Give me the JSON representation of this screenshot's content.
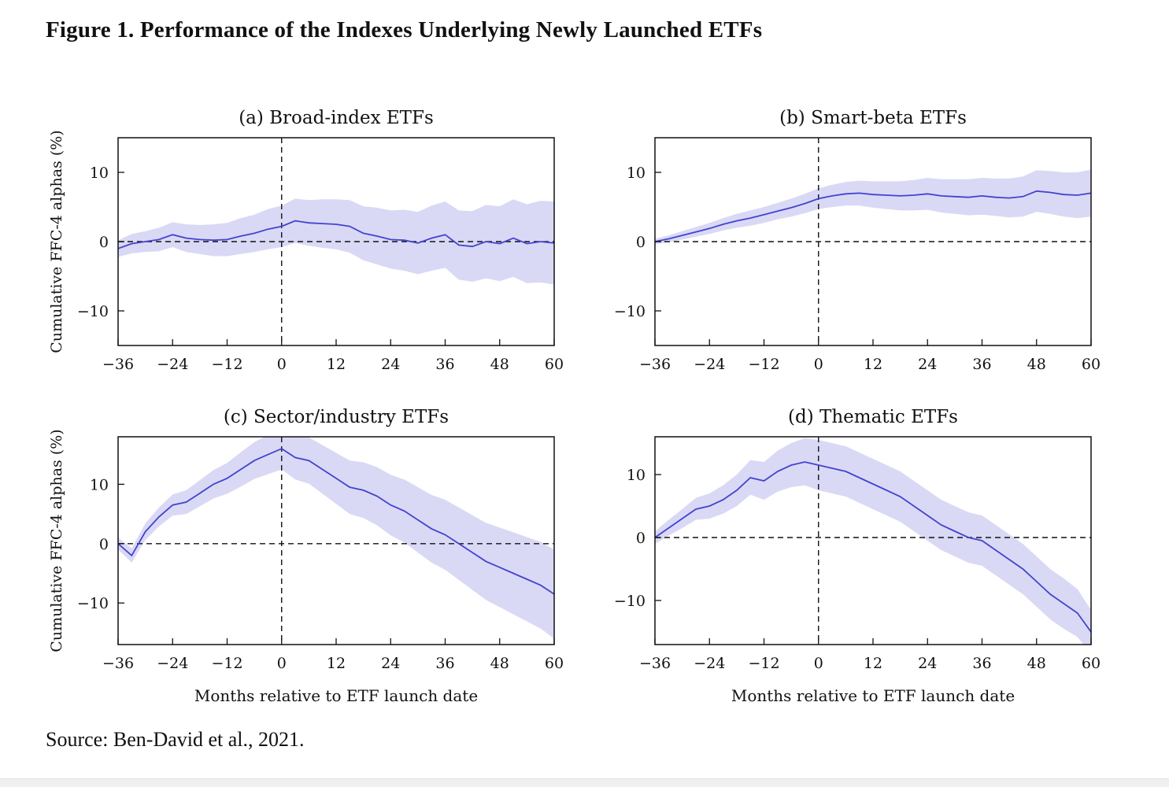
{
  "page": {
    "title": "Figure 1. Performance of the Indexes Underlying Newly Launched ETFs",
    "source": "Source: Ben-David et al., 2021."
  },
  "chart_data": [
    {
      "id": "a",
      "type": "line",
      "title": "(a) Broad-index ETFs",
      "xlabel": "",
      "ylabel": "Cumulative FFC-4 alphas (%)",
      "xlim": [
        -36,
        60
      ],
      "ylim": [
        -15,
        15
      ],
      "xticks": [
        -36,
        -24,
        -12,
        0,
        12,
        24,
        36,
        48,
        60
      ],
      "yticks": [
        -10,
        0,
        10
      ],
      "reference_lines": {
        "horizontal_y": 0,
        "vertical_x": 0
      },
      "line_color": "#4343cf",
      "band_color": "#d9d9f6",
      "x": [
        -36,
        -33,
        -30,
        -27,
        -24,
        -21,
        -18,
        -15,
        -12,
        -9,
        -6,
        -3,
        0,
        3,
        6,
        9,
        12,
        15,
        18,
        21,
        24,
        27,
        30,
        33,
        36,
        39,
        42,
        45,
        48,
        51,
        54,
        57,
        60
      ],
      "line": [
        -1.0,
        -0.3,
        0.0,
        0.3,
        1.0,
        0.5,
        0.3,
        0.2,
        0.3,
        0.8,
        1.2,
        1.8,
        2.2,
        3.0,
        2.7,
        2.6,
        2.5,
        2.2,
        1.2,
        0.8,
        0.3,
        0.2,
        -0.2,
        0.5,
        1.0,
        -0.5,
        -0.7,
        0.0,
        -0.3,
        0.5,
        -0.3,
        0.0,
        -0.2
      ],
      "band_upper": [
        0.2,
        1.1,
        1.5,
        2.0,
        2.8,
        2.5,
        2.4,
        2.5,
        2.7,
        3.4,
        3.9,
        4.7,
        5.2,
        6.2,
        6.0,
        6.1,
        6.1,
        6.0,
        5.1,
        4.9,
        4.5,
        4.6,
        4.3,
        5.2,
        5.8,
        4.5,
        4.4,
        5.3,
        5.1,
        6.1,
        5.4,
        5.9,
        5.8
      ],
      "band_lower": [
        -2.2,
        -1.7,
        -1.5,
        -1.4,
        -0.8,
        -1.5,
        -1.8,
        -2.1,
        -2.1,
        -1.8,
        -1.5,
        -1.1,
        -0.8,
        -0.2,
        -0.6,
        -0.9,
        -1.1,
        -1.6,
        -2.7,
        -3.3,
        -3.9,
        -4.2,
        -4.7,
        -4.2,
        -3.8,
        -5.5,
        -5.8,
        -5.3,
        -5.7,
        -5.1,
        -6.0,
        -5.9,
        -6.2
      ]
    },
    {
      "id": "b",
      "type": "line",
      "title": "(b) Smart-beta ETFs",
      "xlabel": "",
      "ylabel": "",
      "xlim": [
        -36,
        60
      ],
      "ylim": [
        -15,
        15
      ],
      "xticks": [
        -36,
        -24,
        -12,
        0,
        12,
        24,
        36,
        48,
        60
      ],
      "yticks": [
        -10,
        0,
        10
      ],
      "reference_lines": {
        "horizontal_y": 0,
        "vertical_x": 0
      },
      "line_color": "#4343cf",
      "band_color": "#d9d9f6",
      "x": [
        -36,
        -33,
        -30,
        -27,
        -24,
        -21,
        -18,
        -15,
        -12,
        -9,
        -6,
        -3,
        0,
        3,
        6,
        9,
        12,
        15,
        18,
        21,
        24,
        27,
        30,
        33,
        36,
        39,
        42,
        45,
        48,
        51,
        54,
        57,
        60
      ],
      "line": [
        0.0,
        0.4,
        0.9,
        1.4,
        1.9,
        2.5,
        3.0,
        3.4,
        3.9,
        4.4,
        4.9,
        5.5,
        6.2,
        6.6,
        6.9,
        7.0,
        6.8,
        6.7,
        6.6,
        6.7,
        6.9,
        6.6,
        6.5,
        6.4,
        6.6,
        6.4,
        6.3,
        6.5,
        7.3,
        7.1,
        6.8,
        6.7,
        7.0
      ],
      "band_upper": [
        0.4,
        0.9,
        1.5,
        2.1,
        2.7,
        3.4,
        4.0,
        4.5,
        5.0,
        5.6,
        6.2,
        6.9,
        7.7,
        8.2,
        8.6,
        8.8,
        8.7,
        8.7,
        8.7,
        8.9,
        9.2,
        9.0,
        9.0,
        9.0,
        9.2,
        9.1,
        9.1,
        9.4,
        10.3,
        10.2,
        10.0,
        10.0,
        10.4
      ],
      "band_lower": [
        -0.4,
        -0.1,
        0.3,
        0.7,
        1.1,
        1.6,
        2.0,
        2.3,
        2.7,
        3.2,
        3.6,
        4.1,
        4.7,
        5.0,
        5.2,
        5.2,
        4.9,
        4.7,
        4.5,
        4.5,
        4.6,
        4.2,
        4.0,
        3.8,
        3.9,
        3.7,
        3.5,
        3.6,
        4.3,
        4.0,
        3.6,
        3.4,
        3.6
      ]
    },
    {
      "id": "c",
      "type": "line",
      "title": "(c) Sector/industry ETFs",
      "xlabel": "Months relative to ETF launch date",
      "ylabel": "Cumulative FFC-4 alphas (%)",
      "xlim": [
        -36,
        60
      ],
      "ylim": [
        -17,
        18
      ],
      "xticks": [
        -36,
        -24,
        -12,
        0,
        12,
        24,
        36,
        48,
        60
      ],
      "yticks": [
        -10,
        0,
        10
      ],
      "reference_lines": {
        "horizontal_y": 0,
        "vertical_x": 0
      },
      "line_color": "#4343cf",
      "band_color": "#d9d9f6",
      "x": [
        -36,
        -33,
        -30,
        -27,
        -24,
        -21,
        -18,
        -15,
        -12,
        -9,
        -6,
        -3,
        0,
        3,
        6,
        9,
        12,
        15,
        18,
        21,
        24,
        27,
        30,
        33,
        36,
        39,
        42,
        45,
        48,
        51,
        54,
        57,
        60
      ],
      "line": [
        0.0,
        -2.0,
        2.0,
        4.5,
        6.5,
        7.0,
        8.5,
        10.0,
        11.0,
        12.5,
        14.0,
        15.0,
        16.0,
        14.5,
        14.0,
        12.5,
        11.0,
        9.5,
        9.0,
        8.0,
        6.5,
        5.5,
        4.0,
        2.5,
        1.5,
        0.0,
        -1.5,
        -3.0,
        -4.0,
        -5.0,
        -6.0,
        -7.0,
        -8.5
      ],
      "band_upper": [
        1.0,
        -0.8,
        3.4,
        6.1,
        8.3,
        9.0,
        10.7,
        12.4,
        13.6,
        15.4,
        17.1,
        18.3,
        19.5,
        18.2,
        17.9,
        16.6,
        15.3,
        14.0,
        13.7,
        12.9,
        11.6,
        10.8,
        9.5,
        8.2,
        7.4,
        6.1,
        4.8,
        3.5,
        2.7,
        1.9,
        1.1,
        0.3,
        -1.0
      ],
      "band_lower": [
        -1.0,
        -3.2,
        0.6,
        2.9,
        4.7,
        5.0,
        6.3,
        7.6,
        8.4,
        9.6,
        10.9,
        11.7,
        12.5,
        10.8,
        10.1,
        8.4,
        6.7,
        5.0,
        4.3,
        3.1,
        1.4,
        0.2,
        -1.5,
        -3.2,
        -4.4,
        -6.1,
        -7.8,
        -9.5,
        -10.7,
        -11.9,
        -13.1,
        -14.3,
        -16.0
      ]
    },
    {
      "id": "d",
      "type": "line",
      "title": "(d) Thematic ETFs",
      "xlabel": "Months relative to ETF launch date",
      "ylabel": "",
      "xlim": [
        -36,
        60
      ],
      "ylim": [
        -17,
        16
      ],
      "xticks": [
        -36,
        -24,
        -12,
        0,
        12,
        24,
        36,
        48,
        60
      ],
      "yticks": [
        -10,
        0,
        10
      ],
      "reference_lines": {
        "horizontal_y": 0,
        "vertical_x": 0
      },
      "line_color": "#4343cf",
      "band_color": "#d9d9f6",
      "x": [
        -36,
        -33,
        -30,
        -27,
        -24,
        -21,
        -18,
        -15,
        -12,
        -9,
        -6,
        -3,
        0,
        3,
        6,
        9,
        12,
        15,
        18,
        21,
        24,
        27,
        30,
        33,
        36,
        39,
        42,
        45,
        48,
        51,
        54,
        57,
        60
      ],
      "line": [
        0.0,
        1.5,
        3.0,
        4.5,
        5.0,
        6.0,
        7.5,
        9.5,
        9.0,
        10.5,
        11.5,
        12.0,
        11.5,
        11.0,
        10.5,
        9.5,
        8.5,
        7.5,
        6.5,
        5.0,
        3.5,
        2.0,
        1.0,
        0.0,
        -0.5,
        -2.0,
        -3.5,
        -5.0,
        -7.0,
        -9.0,
        -10.5,
        -12.0,
        -15.0
      ],
      "band_upper": [
        1.0,
        2.8,
        4.5,
        6.3,
        7.0,
        8.3,
        10.0,
        12.3,
        12.0,
        13.8,
        15.0,
        15.8,
        15.5,
        15.0,
        14.5,
        13.5,
        12.5,
        11.5,
        10.5,
        9.0,
        7.5,
        6.0,
        5.0,
        4.0,
        3.5,
        2.0,
        0.5,
        -1.0,
        -3.0,
        -5.0,
        -6.5,
        -8.2,
        -11.5
      ],
      "band_lower": [
        -1.0,
        0.3,
        1.5,
        2.8,
        3.0,
        3.8,
        5.0,
        6.8,
        6.0,
        7.3,
        8.0,
        8.3,
        7.5,
        7.0,
        6.5,
        5.5,
        4.5,
        3.5,
        2.5,
        1.0,
        -0.5,
        -2.0,
        -3.0,
        -4.0,
        -4.5,
        -6.0,
        -7.5,
        -9.0,
        -11.0,
        -13.0,
        -14.5,
        -15.8,
        -18.5
      ]
    }
  ]
}
